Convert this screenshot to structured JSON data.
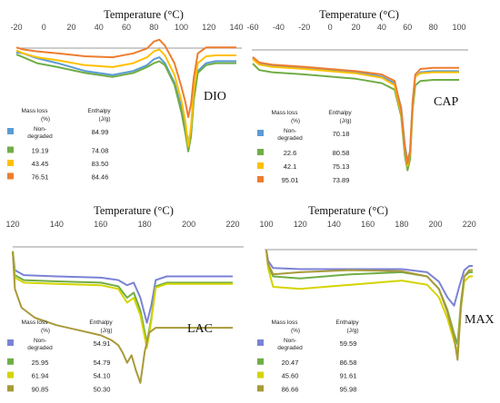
{
  "chart_data": [
    {
      "id": "dio",
      "type": "line",
      "code": "DIO",
      "xlabel": "Temperature (°C)",
      "xticks": [
        "-20",
        "0",
        "20",
        "40",
        "60",
        "80",
        "100",
        "120",
        "140"
      ],
      "xlim": [
        -20,
        140
      ],
      "legend_headers": [
        "Mass loss",
        "(%)",
        "Enthalpy",
        "(J/g)"
      ],
      "series": [
        {
          "mass_loss": [
            "Non-",
            "degraded"
          ],
          "enthalpy": "84.99",
          "color": "#5B9BD5",
          "x": [
            -20,
            -15,
            -5,
            10,
            30,
            50,
            65,
            75,
            80,
            84,
            88,
            95,
            100,
            103,
            105,
            107,
            109,
            112,
            118,
            125,
            130,
            140
          ],
          "y": [
            9,
            10,
            15,
            20,
            28,
            32,
            28,
            22,
            16,
            14,
            20,
            40,
            65,
            85,
            100,
            90,
            55,
            28,
            20,
            18,
            18,
            18
          ]
        },
        {
          "mass_loss": [
            "19.19"
          ],
          "enthalpy": "74.08",
          "color": "#70AD47",
          "x": [
            -20,
            -15,
            -5,
            10,
            30,
            50,
            65,
            75,
            80,
            84,
            88,
            95,
            100,
            103,
            105,
            107,
            109,
            112,
            118,
            125,
            130,
            140
          ],
          "y": [
            11,
            14,
            20,
            24,
            30,
            34,
            30,
            24,
            20,
            18,
            22,
            42,
            70,
            92,
            110,
            95,
            58,
            30,
            22,
            20,
            20,
            20
          ]
        },
        {
          "mass_loss": [
            "43.45"
          ],
          "enthalpy": "83.50",
          "color": "#FFC000",
          "x": [
            -20,
            -15,
            -5,
            10,
            30,
            50,
            65,
            75,
            80,
            84,
            88,
            95,
            100,
            103,
            105,
            107,
            109,
            112,
            118,
            125,
            130,
            140
          ],
          "y": [
            7,
            10,
            14,
            17,
            22,
            24,
            20,
            14,
            8,
            6,
            12,
            32,
            58,
            80,
            105,
            85,
            48,
            20,
            13,
            12,
            12,
            12
          ]
        },
        {
          "mass_loss": [
            "76.51"
          ],
          "enthalpy": "84.46",
          "color": "#ED7D31",
          "x": [
            -20,
            -15,
            -5,
            10,
            30,
            50,
            65,
            75,
            80,
            84,
            88,
            95,
            100,
            103,
            105,
            107,
            109,
            112,
            118,
            125,
            130,
            140
          ],
          "y": [
            4,
            6,
            8,
            10,
            13,
            14,
            10,
            5,
            -2,
            -4,
            2,
            20,
            44,
            60,
            75,
            62,
            35,
            10,
            4,
            4,
            4,
            4
          ]
        }
      ]
    },
    {
      "id": "cap",
      "type": "line",
      "code": "CAP",
      "xlabel": "Temperature (°C)",
      "xticks": [
        "-60",
        "-40",
        "-20",
        "0",
        "20",
        "40",
        "60",
        "80",
        "100"
      ],
      "xlim": [
        -60,
        100
      ],
      "legend_headers": [
        "Mass loss",
        "(%)",
        "Enthalpy",
        "(J/g)"
      ],
      "series": [
        {
          "mass_loss": [
            "Non-",
            "degraded"
          ],
          "enthalpy": "70.18",
          "color": "#5B9BD5",
          "x": [
            -60,
            -55,
            -45,
            -20,
            0,
            20,
            40,
            50,
            55,
            58,
            60,
            62,
            64,
            66,
            70,
            80,
            90,
            100
          ],
          "y": [
            5,
            10,
            12,
            14,
            16,
            18,
            22,
            28,
            50,
            85,
            100,
            90,
            45,
            22,
            18,
            17,
            17,
            17
          ]
        },
        {
          "mass_loss": [
            "22.6"
          ],
          "enthalpy": "80.58",
          "color": "#70AD47",
          "x": [
            -60,
            -55,
            -45,
            -20,
            0,
            20,
            40,
            50,
            55,
            58,
            60,
            62,
            64,
            66,
            70,
            80,
            90,
            100
          ],
          "y": [
            10,
            16,
            18,
            20,
            22,
            24,
            28,
            34,
            58,
            95,
            108,
            98,
            52,
            30,
            26,
            25,
            25,
            25
          ]
        },
        {
          "mass_loss": [
            "42.1"
          ],
          "enthalpy": "75.13",
          "color": "#FFC000",
          "x": [
            -60,
            -55,
            -45,
            -20,
            0,
            20,
            40,
            50,
            55,
            58,
            60,
            62,
            64,
            66,
            70,
            80,
            90,
            100
          ],
          "y": [
            6,
            11,
            13,
            15,
            17,
            19,
            23,
            30,
            55,
            90,
            104,
            92,
            47,
            22,
            19,
            18,
            18,
            18
          ]
        },
        {
          "mass_loss": [
            "95.01"
          ],
          "enthalpy": "73.89",
          "color": "#ED7D31",
          "x": [
            -60,
            -55,
            -45,
            -20,
            0,
            20,
            40,
            50,
            55,
            58,
            60,
            62,
            64,
            66,
            70,
            80,
            90,
            100
          ],
          "y": [
            4,
            9,
            11,
            13,
            15,
            17,
            20,
            26,
            52,
            88,
            102,
            90,
            45,
            20,
            15,
            14,
            14,
            14
          ]
        }
      ]
    },
    {
      "id": "lac",
      "type": "line",
      "code": "LAC",
      "xlabel": "Temperature (°C)",
      "xticks": [
        "120",
        "140",
        "160",
        "180",
        "200",
        "220"
      ],
      "xlim": [
        120,
        220
      ],
      "legend_headers": [
        "Mass loss",
        "(%)",
        "Enthalpy",
        "(J/g)"
      ],
      "series": [
        {
          "mass_loss": [
            "Non-",
            "degraded"
          ],
          "enthalpy": "54.91",
          "color": "#7B82D6",
          "x": [
            120,
            121,
            125,
            140,
            160,
            168,
            172,
            175,
            178,
            181,
            183,
            185,
            190,
            200,
            220
          ],
          "y": [
            5,
            20,
            24,
            25,
            26,
            28,
            32,
            30,
            42,
            62,
            48,
            28,
            25,
            25,
            25
          ]
        },
        {
          "mass_loss": [
            "25.95"
          ],
          "enthalpy": "54.79",
          "color": "#70AD47",
          "x": [
            120,
            121,
            125,
            140,
            160,
            168,
            172,
            175,
            178,
            181,
            183,
            185,
            190,
            200,
            220
          ],
          "y": [
            5,
            24,
            28,
            29,
            30,
            33,
            42,
            38,
            52,
            78,
            58,
            33,
            30,
            30,
            30
          ]
        },
        {
          "mass_loss": [
            "61.94"
          ],
          "enthalpy": "54.10",
          "color": "#D4D400",
          "x": [
            120,
            121,
            125,
            140,
            160,
            168,
            172,
            175,
            178,
            181,
            183,
            185,
            190,
            200,
            220
          ],
          "y": [
            5,
            26,
            30,
            31,
            32,
            35,
            46,
            42,
            56,
            82,
            60,
            34,
            31,
            31,
            31
          ]
        },
        {
          "mass_loss": [
            "90.85"
          ],
          "enthalpy": "50.30",
          "color": "#A89A3A",
          "x": [
            120,
            121,
            124,
            130,
            140,
            150,
            160,
            165,
            168,
            170,
            172,
            174,
            176,
            178,
            180,
            182,
            185,
            190,
            200,
            220
          ],
          "y": [
            5,
            35,
            50,
            58,
            64,
            68,
            72,
            76,
            80,
            86,
            94,
            88,
            100,
            110,
            85,
            70,
            66,
            66,
            66,
            66
          ]
        }
      ]
    },
    {
      "id": "max",
      "type": "line",
      "code": "MAX",
      "xlabel": "Temperature (°C)",
      "xticks": [
        "100",
        "120",
        "140",
        "160",
        "180",
        "200",
        "220"
      ],
      "xlim": [
        100,
        222
      ],
      "legend_headers": [
        "Mass loss",
        "(%)",
        "Enthalpy",
        "(J/g)"
      ],
      "series": [
        {
          "mass_loss": [
            "Non-",
            "degraded"
          ],
          "enthalpy": "59.59",
          "color": "#7B82D6",
          "x": [
            100,
            101,
            104,
            120,
            150,
            180,
            195,
            202,
            207,
            211,
            214,
            217,
            220,
            222
          ],
          "y": [
            5,
            15,
            22,
            23,
            23,
            23,
            26,
            35,
            50,
            58,
            40,
            24,
            20,
            20
          ]
        },
        {
          "mass_loss": [
            "20.47"
          ],
          "enthalpy": "86.58",
          "color": "#70AD47",
          "x": [
            100,
            101,
            104,
            120,
            150,
            180,
            195,
            202,
            207,
            211,
            213,
            215,
            217,
            220,
            222
          ],
          "y": [
            5,
            20,
            30,
            32,
            28,
            26,
            30,
            42,
            62,
            85,
            95,
            55,
            30,
            26,
            26
          ]
        },
        {
          "mass_loss": [
            "45.60"
          ],
          "enthalpy": "91.61",
          "color": "#D4D400",
          "x": [
            100,
            101,
            104,
            120,
            150,
            180,
            195,
            202,
            207,
            211,
            213,
            215,
            217,
            220,
            222
          ],
          "y": [
            5,
            22,
            40,
            42,
            38,
            34,
            38,
            50,
            70,
            92,
            103,
            60,
            35,
            30,
            30
          ]
        },
        {
          "mass_loss": [
            "86.66"
          ],
          "enthalpy": "95.98",
          "color": "#A89A3A",
          "x": [
            100,
            101,
            104,
            120,
            150,
            180,
            195,
            202,
            207,
            211,
            213,
            215,
            217,
            220,
            222
          ],
          "y": [
            5,
            18,
            28,
            26,
            24,
            25,
            30,
            42,
            64,
            88,
            110,
            60,
            30,
            24,
            24
          ]
        }
      ]
    }
  ]
}
